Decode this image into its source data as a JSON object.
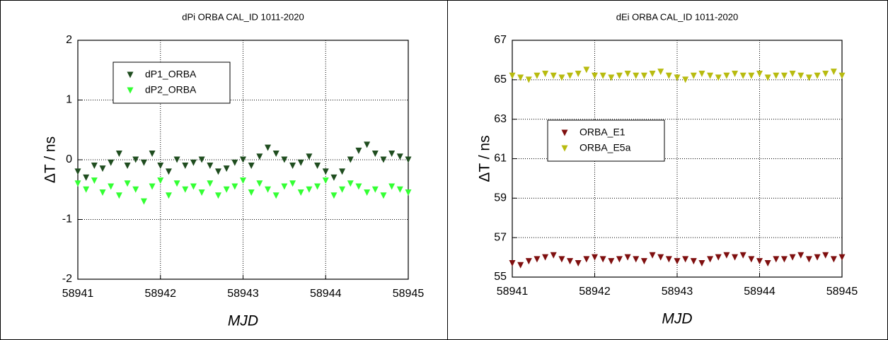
{
  "chart_data": [
    {
      "type": "scatter",
      "title": "dPi ORBA CAL_ID 1011-2020",
      "xlabel": "MJD",
      "ylabel": "ΔT / ns",
      "x": [
        58941,
        58941.1,
        58941.2,
        58941.3,
        58941.4,
        58941.5,
        58941.6,
        58941.7,
        58941.8,
        58941.9,
        58942,
        58942.1,
        58942.2,
        58942.3,
        58942.4,
        58942.5,
        58942.6,
        58942.7,
        58942.8,
        58942.9,
        58943,
        58943.1,
        58943.2,
        58943.3,
        58943.4,
        58943.5,
        58943.6,
        58943.7,
        58943.8,
        58943.9,
        58944,
        58944.1,
        58944.2,
        58944.3,
        58944.4,
        58944.5,
        58944.6,
        58944.7,
        58944.8,
        58944.9,
        58945
      ],
      "series": [
        {
          "name": "dP1_ORBA",
          "color": "#1f4d1f",
          "values": [
            -0.2,
            -0.3,
            -0.1,
            -0.15,
            -0.05,
            0.1,
            -0.1,
            0.0,
            -0.05,
            0.1,
            -0.1,
            -0.2,
            0.0,
            -0.1,
            -0.05,
            0.0,
            -0.1,
            -0.2,
            -0.15,
            -0.05,
            0.0,
            -0.1,
            0.05,
            0.2,
            0.1,
            0.0,
            -0.1,
            -0.05,
            0.05,
            -0.1,
            -0.2,
            -0.3,
            -0.2,
            0.0,
            0.15,
            0.25,
            0.1,
            0.0,
            0.1,
            0.05,
            0.0
          ]
        },
        {
          "name": "dP2_ORBA",
          "color": "#33ff33",
          "values": [
            -0.4,
            -0.5,
            -0.35,
            -0.55,
            -0.45,
            -0.6,
            -0.4,
            -0.5,
            -0.7,
            -0.45,
            -0.35,
            -0.6,
            -0.4,
            -0.5,
            -0.45,
            -0.55,
            -0.4,
            -0.6,
            -0.5,
            -0.45,
            -0.35,
            -0.55,
            -0.4,
            -0.5,
            -0.6,
            -0.45,
            -0.4,
            -0.55,
            -0.5,
            -0.45,
            -0.35,
            -0.6,
            -0.5,
            -0.4,
            -0.45,
            -0.55,
            -0.5,
            -0.6,
            -0.45,
            -0.5,
            -0.55
          ]
        }
      ],
      "xlim": [
        58941,
        58945
      ],
      "xticks": [
        58941,
        58942,
        58943,
        58944,
        58945
      ],
      "ylim": [
        -2,
        2
      ],
      "yticks": [
        -2,
        -1,
        0,
        1,
        2
      ],
      "grid": true,
      "legend": "upper left"
    },
    {
      "type": "scatter",
      "title": "dEi ORBA CAL_ID 1011-2020",
      "xlabel": "MJD",
      "ylabel": "ΔT / ns",
      "x": [
        58941,
        58941.1,
        58941.2,
        58941.3,
        58941.4,
        58941.5,
        58941.6,
        58941.7,
        58941.8,
        58941.9,
        58942,
        58942.1,
        58942.2,
        58942.3,
        58942.4,
        58942.5,
        58942.6,
        58942.7,
        58942.8,
        58942.9,
        58943,
        58943.1,
        58943.2,
        58943.3,
        58943.4,
        58943.5,
        58943.6,
        58943.7,
        58943.8,
        58943.9,
        58944,
        58944.1,
        58944.2,
        58944.3,
        58944.4,
        58944.5,
        58944.6,
        58944.7,
        58944.8,
        58944.9,
        58945
      ],
      "series": [
        {
          "name": "ORBA_E1",
          "color": "#7f0f0f",
          "values": [
            55.7,
            55.6,
            55.8,
            55.9,
            56.0,
            56.1,
            55.9,
            55.8,
            55.7,
            55.9,
            56.0,
            55.9,
            55.8,
            55.9,
            56.0,
            55.9,
            55.8,
            56.1,
            56.0,
            55.9,
            55.8,
            55.9,
            55.8,
            55.7,
            55.9,
            56.0,
            56.1,
            56.0,
            56.1,
            55.9,
            55.8,
            55.7,
            55.9,
            55.9,
            56.0,
            56.1,
            55.9,
            56.0,
            56.1,
            55.9,
            56.0
          ]
        },
        {
          "name": "ORBA_E5a",
          "color": "#b8bb10",
          "values": [
            65.2,
            65.1,
            65.0,
            65.2,
            65.3,
            65.2,
            65.1,
            65.2,
            65.3,
            65.5,
            65.2,
            65.2,
            65.1,
            65.2,
            65.3,
            65.2,
            65.2,
            65.3,
            65.4,
            65.2,
            65.1,
            65.0,
            65.2,
            65.3,
            65.2,
            65.1,
            65.2,
            65.3,
            65.2,
            65.2,
            65.3,
            65.1,
            65.2,
            65.2,
            65.3,
            65.2,
            65.1,
            65.2,
            65.3,
            65.4,
            65.2
          ]
        }
      ],
      "xlim": [
        58941,
        58945
      ],
      "xticks": [
        58941,
        58942,
        58943,
        58944,
        58945
      ],
      "ylim": [
        55,
        67
      ],
      "yticks": [
        55,
        57,
        59,
        61,
        63,
        65,
        67
      ],
      "grid": true,
      "legend": "center left"
    }
  ]
}
